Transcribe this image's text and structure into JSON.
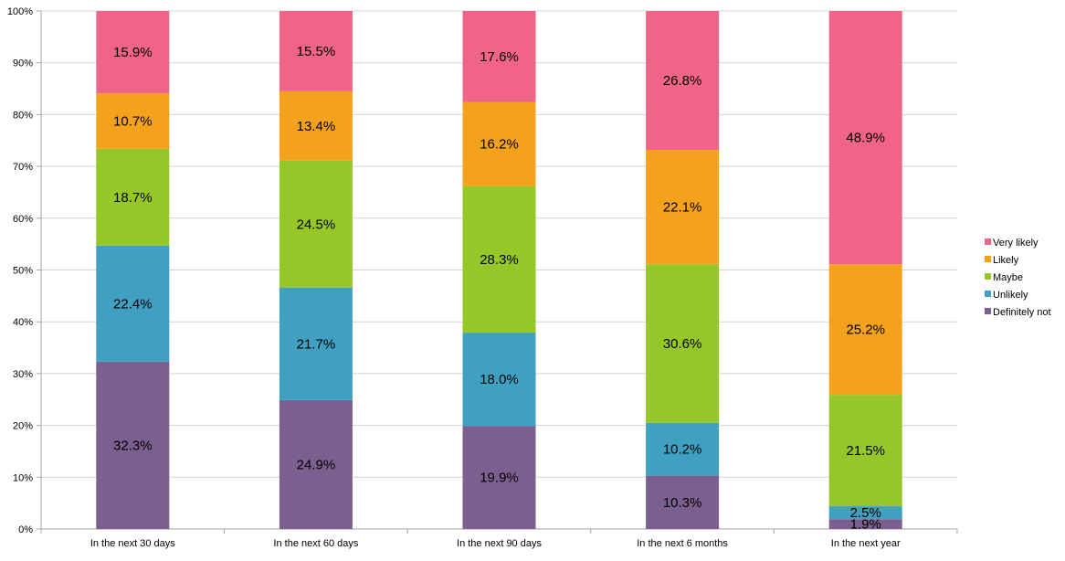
{
  "chart_data": {
    "type": "bar",
    "stacked": true,
    "categories": [
      "In the next 30 days",
      "In the next 60 days",
      "In the next 90 days",
      "In the next 6 months",
      "In the next year"
    ],
    "series": [
      {
        "name": "Definitely not",
        "color": "#7b5f8f",
        "values": [
          32.3,
          24.9,
          19.9,
          10.3,
          1.9
        ],
        "labels": [
          "32.3%",
          "24.9%",
          "19.9%",
          "10.3%",
          "1.9%"
        ]
      },
      {
        "name": "Unlikely",
        "color": "#3fa0c2",
        "values": [
          22.4,
          21.7,
          18.0,
          10.2,
          2.5
        ],
        "labels": [
          "22.4%",
          "21.7%",
          "18.0%",
          "10.2%",
          "2.5%"
        ]
      },
      {
        "name": "Maybe",
        "color": "#95c728",
        "values": [
          18.7,
          24.5,
          28.3,
          30.6,
          21.5
        ],
        "labels": [
          "18.7%",
          "24.5%",
          "28.3%",
          "30.6%",
          "21.5%"
        ]
      },
      {
        "name": "Likely",
        "color": "#f4a21b",
        "values": [
          10.7,
          13.4,
          16.2,
          22.1,
          25.2
        ],
        "labels": [
          "10.7%",
          "13.4%",
          "16.2%",
          "22.1%",
          "25.2%"
        ]
      },
      {
        "name": "Very likely",
        "color": "#ef6487",
        "values": [
          15.9,
          15.5,
          17.6,
          26.8,
          48.9
        ],
        "labels": [
          "15.9%",
          "15.5%",
          "17.6%",
          "26.8%",
          "48.9%"
        ]
      }
    ],
    "yticks": [
      "0%",
      "10%",
      "20%",
      "30%",
      "40%",
      "50%",
      "60%",
      "70%",
      "80%",
      "90%",
      "100%"
    ],
    "ylim": [
      0,
      100
    ],
    "grid": true,
    "legend": "right",
    "legend_order": [
      "Very likely",
      "Likely",
      "Maybe",
      "Unlikely",
      "Definitely not"
    ]
  }
}
